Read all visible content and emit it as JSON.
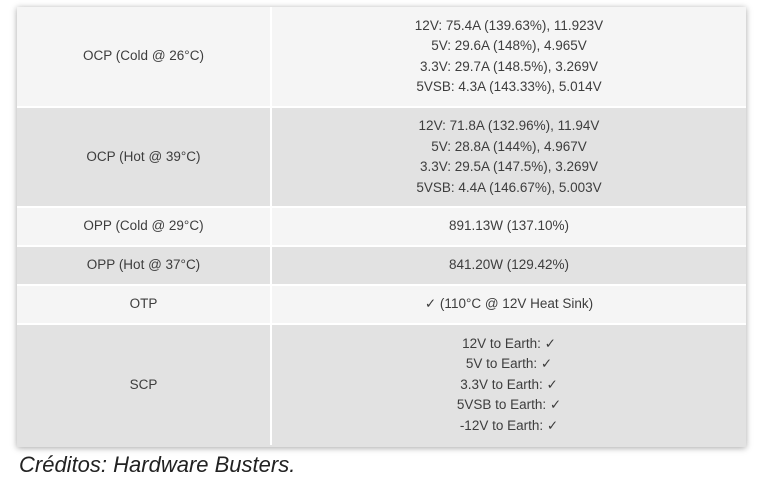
{
  "table": {
    "rows": [
      {
        "label": "OCP (Cold @ 26°C)",
        "values": [
          "12V: 75.4A (139.63%), 11.923V",
          "5V: 29.6A (148%), 4.965V",
          "3.3V: 29.7A (148.5%), 3.269V",
          "5VSB: 4.3A (143.33%), 5.014V"
        ]
      },
      {
        "label": "OCP (Hot @ 39°C)",
        "values": [
          "12V: 71.8A (132.96%), 11.94V",
          "5V: 28.8A (144%), 4.967V",
          "3.3V: 29.5A (147.5%), 3.269V",
          "5VSB: 4.4A (146.67%), 5.003V"
        ]
      },
      {
        "label": "OPP (Cold @ 29°C)",
        "values": [
          "891.13W (137.10%)"
        ]
      },
      {
        "label": "OPP (Hot @ 37°C)",
        "values": [
          "841.20W (129.42%)"
        ]
      },
      {
        "label": "OTP",
        "values": [
          "✓ (110°C @ 12V Heat Sink)"
        ]
      },
      {
        "label": "SCP",
        "values": [
          "12V to Earth: ✓",
          "5V to Earth: ✓",
          "3.3V to Earth: ✓",
          "5VSB to Earth: ✓",
          "-12V to Earth: ✓"
        ]
      }
    ]
  },
  "caption": "Créditos: Hardware Busters."
}
